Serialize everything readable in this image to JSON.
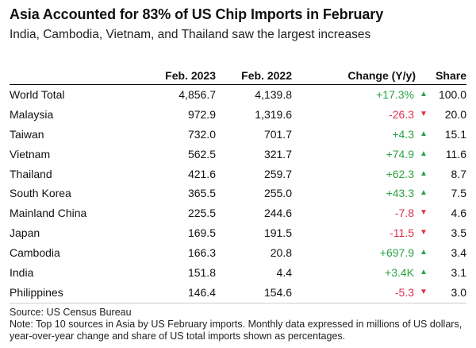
{
  "title": "Asia Accounted for 83% of US Chip Imports in February",
  "subtitle": "India, Cambodia, Vietnam, and Thailand saw the largest increases",
  "colors": {
    "positive": "#2aa344",
    "negative": "#e0304a"
  },
  "chart_data": {
    "type": "table",
    "columns": [
      "",
      "Feb. 2023",
      "Feb. 2022",
      "Change (Y/y)",
      "Share"
    ],
    "rows": [
      {
        "name": "World Total",
        "feb2023": "4,856.7",
        "feb2022": "4,139.8",
        "change": "+17.3%",
        "direction": "up",
        "share": "100.0"
      },
      {
        "name": "Malaysia",
        "feb2023": "972.9",
        "feb2022": "1,319.6",
        "change": "-26.3",
        "direction": "down",
        "share": "20.0"
      },
      {
        "name": "Taiwan",
        "feb2023": "732.0",
        "feb2022": "701.7",
        "change": "+4.3",
        "direction": "up",
        "share": "15.1"
      },
      {
        "name": "Vietnam",
        "feb2023": "562.5",
        "feb2022": "321.7",
        "change": "+74.9",
        "direction": "up",
        "share": "11.6"
      },
      {
        "name": "Thailand",
        "feb2023": "421.6",
        "feb2022": "259.7",
        "change": "+62.3",
        "direction": "up",
        "share": "8.7"
      },
      {
        "name": "South Korea",
        "feb2023": "365.5",
        "feb2022": "255.0",
        "change": "+43.3",
        "direction": "up",
        "share": "7.5"
      },
      {
        "name": "Mainland China",
        "feb2023": "225.5",
        "feb2022": "244.6",
        "change": "-7.8",
        "direction": "down",
        "share": "4.6"
      },
      {
        "name": "Japan",
        "feb2023": "169.5",
        "feb2022": "191.5",
        "change": "-11.5",
        "direction": "down",
        "share": "3.5"
      },
      {
        "name": "Cambodia",
        "feb2023": "166.3",
        "feb2022": "20.8",
        "change": "+697.9",
        "direction": "up",
        "share": "3.4"
      },
      {
        "name": "India",
        "feb2023": "151.8",
        "feb2022": "4.4",
        "change": "+3.4K",
        "direction": "up",
        "share": "3.1"
      },
      {
        "name": "Philippines",
        "feb2023": "146.4",
        "feb2022": "154.6",
        "change": "-5.3",
        "direction": "down",
        "share": "3.0"
      }
    ]
  },
  "source": "Source: US Census Bureau",
  "note": "Note: Top 10 sources in Asia by US February imports. Monthly data expressed in millions of US dollars, year-over-year change and share of US total imports shown as percentages."
}
